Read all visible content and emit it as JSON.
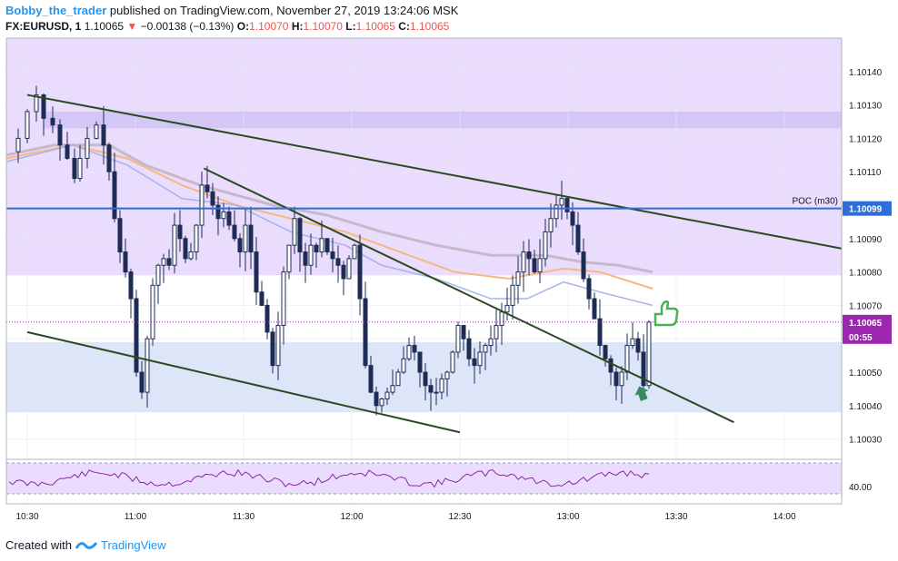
{
  "header": {
    "author": "Bobby_the_trader",
    "published": "published on TradingView.com, November 27, 2019 13:24:06 MSK",
    "symbol": "FX:EURUSD, 1",
    "last": "1.10065",
    "arrow": "▼",
    "change": "−0.00138 (−0.13%)",
    "o_label": "O:",
    "o_val": "1.10070",
    "h_label": "H:",
    "h_val": "1.10070",
    "l_label": "L:",
    "l_val": "1.10065",
    "c_label": "C:",
    "c_val": "1.10065"
  },
  "footer": {
    "created": "Created with",
    "brand": "TradingView"
  },
  "colors": {
    "bull": "#1e2c55",
    "bear": "#1e2c55",
    "purple_zone": "#eadcfc",
    "blue_zone": "#dde6f9",
    "trend_line": "#2a4a20",
    "poc_line": "#2f6ed6",
    "price_line": "#9c27b0",
    "ma_orange": "#f6b87d",
    "ma_grey": "#c8b8cc",
    "ma_blue": "#a5b4ee",
    "rsi": "#8e24aa"
  },
  "chart_data": {
    "type": "candlestick",
    "timeframe": "1 minute",
    "ylim": [
      1.10025,
      1.1015
    ],
    "y_ticks": [
      "1.10140",
      "1.10130",
      "1.10120",
      "1.10110",
      "1.10100",
      "1.10090",
      "1.10080",
      "1.10070",
      "1.10060",
      "1.10050",
      "1.10040",
      "1.10030"
    ],
    "x_ticks": [
      "10:30",
      "11:00",
      "11:30",
      "12:00",
      "12:30",
      "13:00",
      "13:30",
      "14:00"
    ],
    "poc": {
      "label": "POC (m30)",
      "value": "1.10099"
    },
    "last_price": {
      "value": "1.10065",
      "countdown": "00:55"
    },
    "zones": [
      {
        "name": "upper",
        "y_from": 1.10079,
        "y_to": 1.1015
      },
      {
        "name": "upper-inner",
        "y_from": 1.10123,
        "y_to": 1.10128
      },
      {
        "name": "lower",
        "y_from": 1.10038,
        "y_to": 1.10059
      }
    ],
    "trendlines": [
      {
        "x1": "10:30",
        "y1": 1.10133,
        "x2": "14:16",
        "y2": 1.10087
      },
      {
        "x1": "11:19",
        "y1": 1.10111,
        "x2": "13:46",
        "y2": 1.10035
      },
      {
        "x1": "10:30",
        "y1": 1.10062,
        "x2": "12:30",
        "y2": 1.10032
      }
    ],
    "rsi": {
      "label": "40.00",
      "upper_level": 70,
      "lower_level": 30
    }
  }
}
